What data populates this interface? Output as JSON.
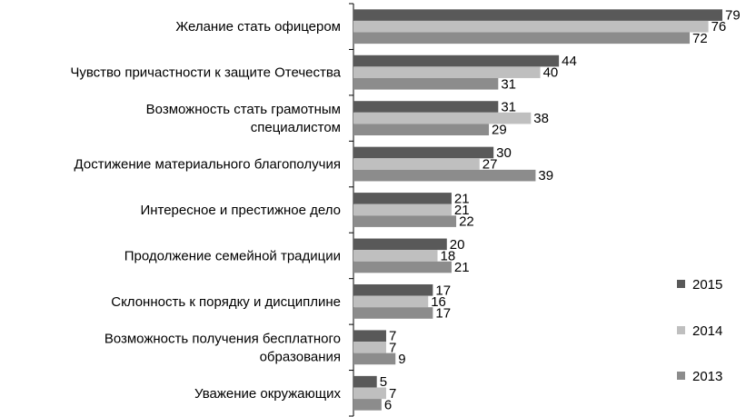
{
  "chart_data": {
    "type": "bar",
    "orientation": "horizontal",
    "categories": [
      [
        "Желание стать офицером"
      ],
      [
        "Чувство причастности к защите Отечества"
      ],
      [
        "Возможность стать грамотным",
        "специалистом"
      ],
      [
        "Достижение материального благополучия"
      ],
      [
        "Интересное и престижное дело"
      ],
      [
        "Продолжение семейной традиции"
      ],
      [
        "Склонность к порядку и дисциплине"
      ],
      [
        "Возможность получения бесплатного",
        "образования"
      ],
      [
        "Уважение окружающих"
      ]
    ],
    "series": [
      {
        "name": "2015",
        "color": "#595959",
        "values": [
          79,
          44,
          31,
          30,
          21,
          20,
          17,
          7,
          5
        ]
      },
      {
        "name": "2014",
        "color": "#bfbfbf",
        "values": [
          76,
          40,
          38,
          27,
          21,
          18,
          16,
          7,
          7
        ]
      },
      {
        "name": "2013",
        "color": "#8c8c8c",
        "values": [
          72,
          31,
          29,
          39,
          22,
          21,
          17,
          9,
          6
        ]
      }
    ],
    "xlim": [
      0,
      80
    ],
    "grid": false,
    "legend_position": "right-bottom",
    "data_labels": true
  }
}
